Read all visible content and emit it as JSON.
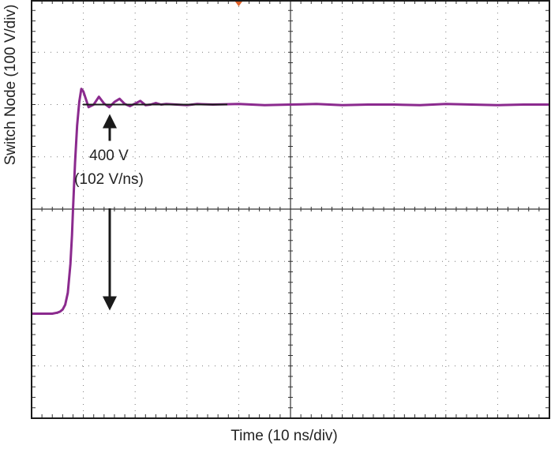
{
  "chart_data": {
    "type": "line",
    "xlabel": "Time (10 ns/div)",
    "ylabel": "Switch Node (100 V/div)",
    "x_divisions": 10,
    "y_divisions": 8,
    "annotation": {
      "line1": "400 V",
      "line2": "(102 V/ns)"
    },
    "colors": {
      "trace": "#8b2a8e",
      "grid": "#7a7a7a",
      "frame": "#1a1a1a",
      "trigger": "#e0622a"
    },
    "series": [
      {
        "x": [
          0,
          1,
          2,
          3,
          4,
          5.0,
          5.5,
          6.0,
          6.5,
          7.0,
          7.5,
          7.8,
          8.0,
          8.4,
          8.8,
          9.2,
          9.6,
          10.0,
          11.0,
          12.0,
          13.0,
          14.0,
          15.0,
          16.0,
          17.0,
          18.0,
          19.0,
          20.0,
          21.0,
          22.0,
          23.0,
          24.0,
          25.0,
          26.0,
          28.0,
          30.0,
          32.0,
          35.0,
          40.0,
          45.0,
          50.0,
          55.0,
          60.0,
          65.0,
          70.0,
          75.0,
          80.0,
          85.0,
          90.0,
          95.0,
          100.0
        ],
        "y": [
          0,
          0,
          0,
          0,
          0,
          2,
          4,
          8,
          17,
          40,
          95,
          150,
          200,
          290,
          360,
          405,
          430,
          425,
          395,
          400,
          415,
          402,
          395,
          405,
          411,
          401,
          397,
          402,
          407,
          399,
          400,
          403,
          400,
          401,
          400,
          399,
          401,
          400,
          401,
          399,
          400,
          401,
          399,
          400,
          400,
          399,
          401,
          400,
          399,
          400,
          400
        ]
      }
    ]
  }
}
